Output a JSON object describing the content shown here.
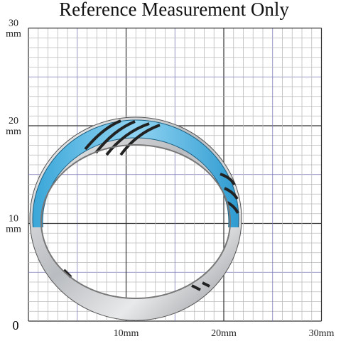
{
  "title": "Reference Measurement Only",
  "y_labels": [
    {
      "number": "30",
      "unit": "mm"
    },
    {
      "number": "20",
      "unit": "mm"
    },
    {
      "number": "10",
      "unit": "mm"
    }
  ],
  "origin": "0",
  "x_labels": [
    "10mm",
    "20mm",
    "30mm"
  ]
}
